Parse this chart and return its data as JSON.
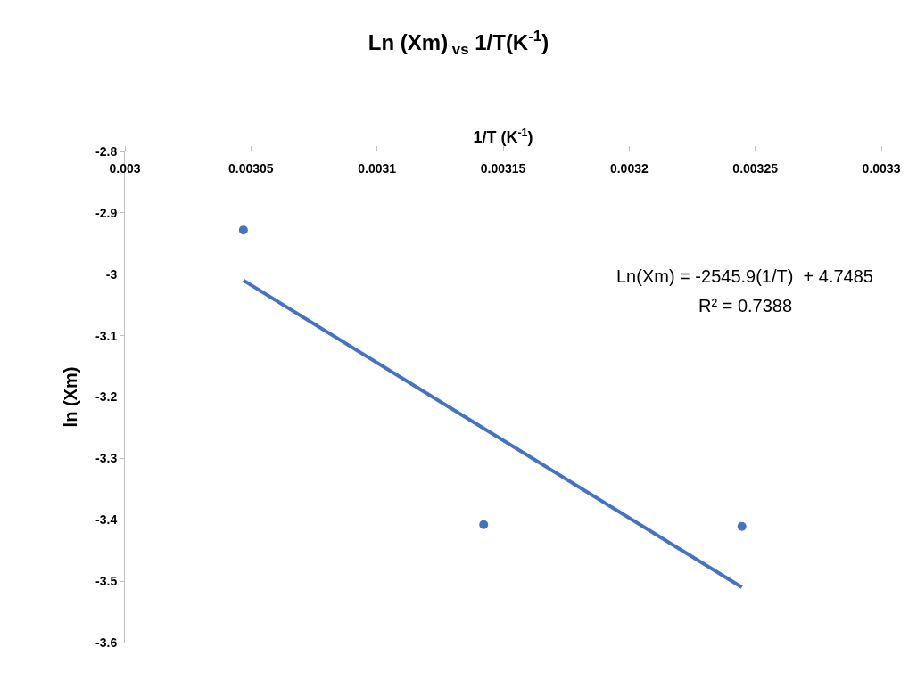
{
  "chart_data": {
    "type": "scatter",
    "title": "Ln (Xm)$_{ vs}$ 1/T(K$^{-1}$)",
    "xlabel": "1/T (K$^{-1}$)",
    "ylabel": "ln (Xm)",
    "x": [
      0.003047,
      0.0031423,
      0.0032447
    ],
    "series": [
      {
        "color": "#4472c4",
        "marker": "circle",
        "values": [
          -2.928,
          -3.408,
          -3.411
        ]
      },
      {
        "type": "line",
        "color": "#4472c4",
        "marker": "none",
        "line_style": "solid",
        "x": [
          0.003047,
          0.0032447
        ],
        "values": [
          -3.01,
          -3.51
        ]
      }
    ],
    "annotations": [
      "Ln(Xm) = -2545.9(1/T)  + 4.7485",
      "R² = 0.7388"
    ],
    "xlim": [
      0.003,
      0.0033
    ],
    "xticks": [
      0.003,
      0.00305,
      0.0031,
      0.00315,
      0.0032,
      0.00325,
      0.0033
    ],
    "ylim": [
      -3.6,
      -2.8
    ],
    "yticks": [
      -2.8,
      -2.9,
      -3,
      -3.1,
      -3.2,
      -3.3,
      -3.4,
      -3.5,
      -3.6
    ],
    "grid": false,
    "legend": false
  }
}
